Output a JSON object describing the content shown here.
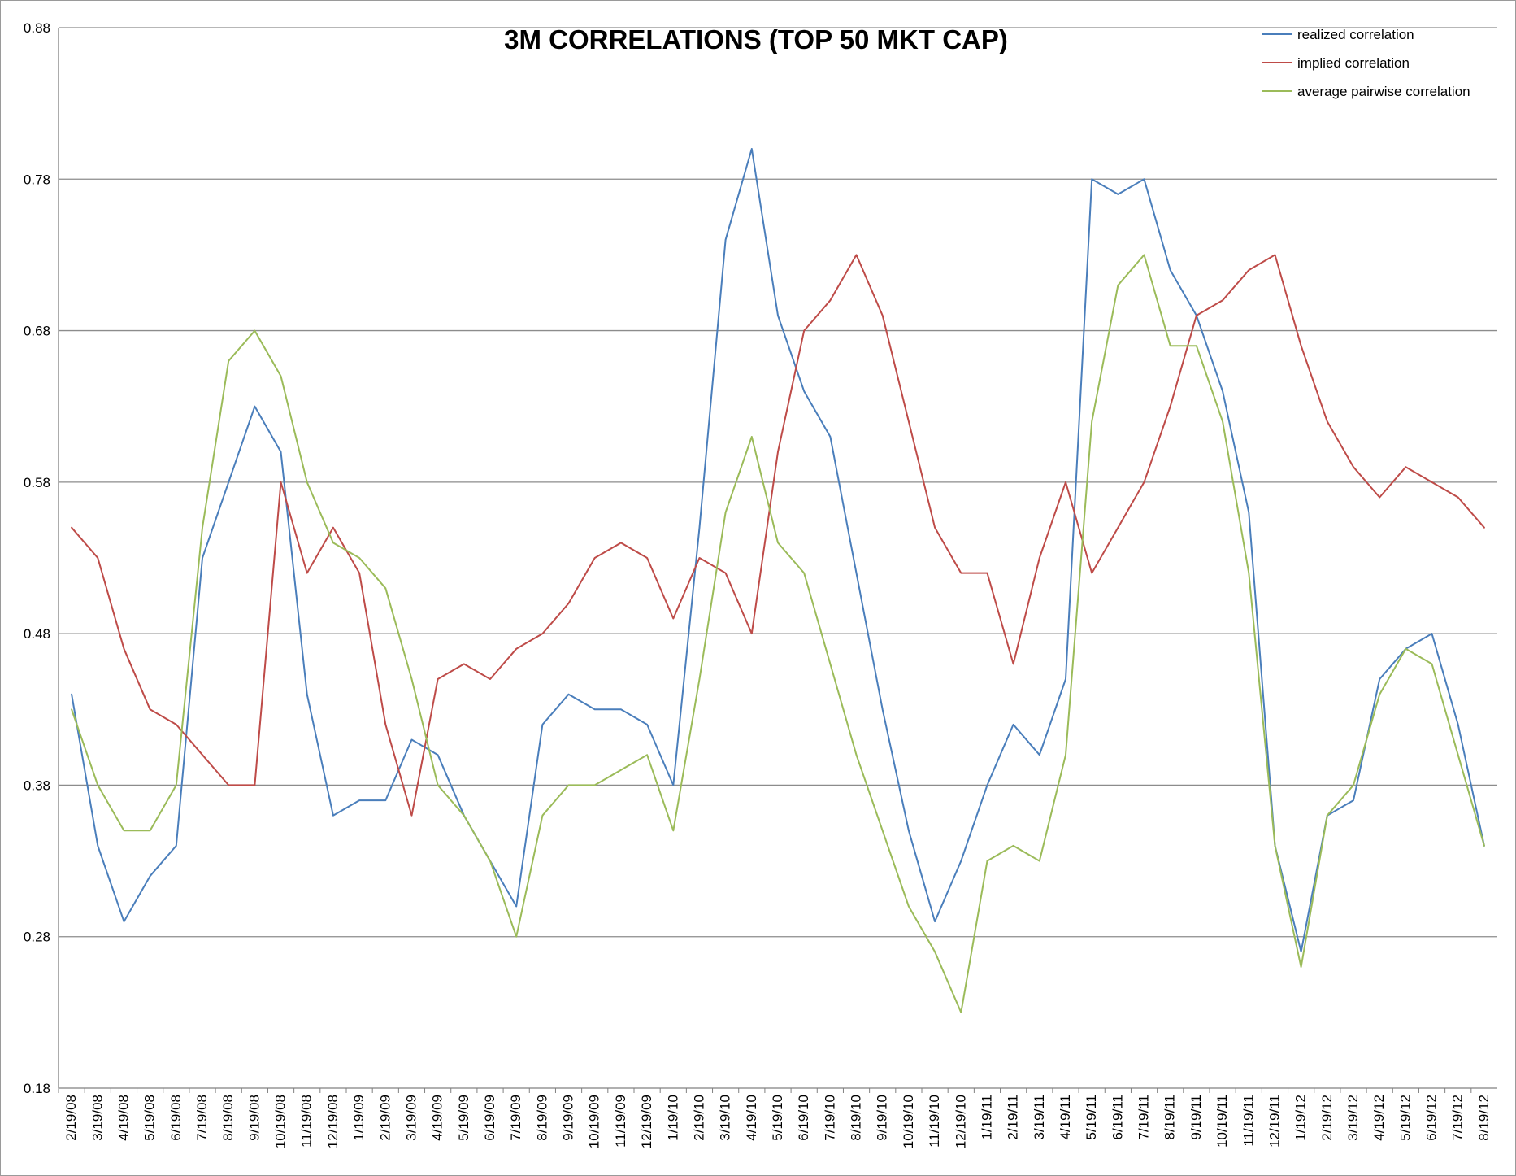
{
  "chart_data": {
    "type": "line",
    "title": "3M CORRELATIONS (TOP 50 MKT CAP)",
    "xlabel": "",
    "ylabel": "",
    "ylim": [
      0.18,
      0.88
    ],
    "yticks": [
      "0.18",
      "0.28",
      "0.38",
      "0.48",
      "0.58",
      "0.68",
      "0.78",
      "0.88"
    ],
    "xtick_labels": [
      "2/19/08",
      "3/19/08",
      "4/19/08",
      "5/19/08",
      "6/19/08",
      "7/19/08",
      "8/19/08",
      "9/19/08",
      "10/19/08",
      "11/19/08",
      "12/19/08",
      "1/19/09",
      "2/19/09",
      "3/19/09",
      "4/19/09",
      "5/19/09",
      "6/19/09",
      "7/19/09",
      "8/19/09",
      "9/19/09",
      "10/19/09",
      "11/19/09",
      "12/19/09",
      "1/19/10",
      "2/19/10",
      "3/19/10",
      "4/19/10",
      "5/19/10",
      "6/19/10",
      "7/19/10",
      "8/19/10",
      "9/19/10",
      "10/19/10",
      "11/19/10",
      "12/19/10",
      "1/19/11",
      "2/19/11",
      "3/19/11",
      "4/19/11",
      "5/19/11",
      "6/19/11",
      "7/19/11",
      "8/19/11",
      "9/19/11",
      "10/19/11",
      "11/19/11",
      "12/19/11",
      "1/19/12",
      "2/19/12",
      "3/19/12",
      "4/19/12",
      "5/19/12",
      "6/19/12",
      "7/19/12",
      "8/19/12"
    ],
    "x": [
      "2/19/08",
      "3/19/08",
      "4/19/08",
      "5/19/08",
      "6/19/08",
      "7/19/08",
      "8/19/08",
      "9/19/08",
      "10/19/08",
      "11/19/08",
      "12/19/08",
      "1/19/09",
      "2/19/09",
      "3/19/09",
      "4/19/09",
      "5/19/09",
      "6/19/09",
      "7/19/09",
      "8/19/09",
      "9/19/09",
      "10/19/09",
      "11/19/09",
      "12/19/09",
      "1/19/10",
      "2/19/10",
      "3/19/10",
      "4/19/10",
      "5/19/10",
      "6/19/10",
      "7/19/10",
      "8/19/10",
      "9/19/10",
      "10/19/10",
      "11/19/10",
      "12/19/10",
      "1/19/11",
      "2/19/11",
      "3/19/11",
      "4/19/11",
      "5/19/11",
      "6/19/11",
      "7/19/11",
      "8/19/11",
      "9/19/11",
      "10/19/11",
      "11/19/11",
      "12/19/11",
      "1/19/12",
      "2/19/12",
      "3/19/12",
      "4/19/12",
      "5/19/12",
      "6/19/12",
      "7/19/12",
      "8/19/12"
    ],
    "grid": true,
    "legend_position": "top-right",
    "series": [
      {
        "name": "realized correlation",
        "color": "#4a7ebb",
        "values": [
          0.44,
          0.34,
          0.29,
          0.32,
          0.34,
          0.53,
          0.58,
          0.63,
          0.6,
          0.44,
          0.36,
          0.37,
          0.37,
          0.41,
          0.4,
          0.36,
          0.33,
          0.3,
          0.42,
          0.44,
          0.43,
          0.43,
          0.42,
          0.38,
          0.55,
          0.74,
          0.8,
          0.69,
          0.64,
          0.61,
          0.52,
          0.43,
          0.35,
          0.29,
          0.33,
          0.38,
          0.42,
          0.4,
          0.45,
          0.78,
          0.77,
          0.78,
          0.72,
          0.69,
          0.64,
          0.56,
          0.34,
          0.27,
          0.36,
          0.37,
          0.45,
          0.47,
          0.48,
          0.42,
          0.34
        ]
      },
      {
        "name": "implied correlation",
        "color": "#be4b48",
        "values": [
          0.55,
          0.53,
          0.47,
          0.43,
          0.42,
          0.4,
          0.38,
          0.38,
          0.58,
          0.52,
          0.55,
          0.52,
          0.42,
          0.36,
          0.45,
          0.46,
          0.45,
          0.47,
          0.48,
          0.5,
          0.53,
          0.54,
          0.53,
          0.49,
          0.53,
          0.52,
          0.48,
          0.6,
          0.68,
          0.7,
          0.73,
          0.69,
          0.62,
          0.55,
          0.52,
          0.52,
          0.46,
          0.53,
          0.58,
          0.52,
          0.55,
          0.58,
          0.63,
          0.69,
          0.7,
          0.72,
          0.73,
          0.67,
          0.62,
          0.59,
          0.57,
          0.59,
          0.58,
          0.57,
          0.55
        ]
      },
      {
        "name": "average pairwise correlation",
        "color": "#9bbb59",
        "values": [
          0.43,
          0.38,
          0.35,
          0.35,
          0.38,
          0.55,
          0.66,
          0.68,
          0.65,
          0.58,
          0.54,
          0.53,
          0.51,
          0.45,
          0.38,
          0.36,
          0.33,
          0.28,
          0.36,
          0.38,
          0.38,
          0.39,
          0.4,
          0.35,
          0.45,
          0.56,
          0.61,
          0.54,
          0.52,
          0.46,
          0.4,
          0.35,
          0.3,
          0.27,
          0.23,
          0.33,
          0.34,
          0.33,
          0.4,
          0.62,
          0.71,
          0.73,
          0.67,
          0.67,
          0.62,
          0.52,
          0.34,
          0.26,
          0.36,
          0.38,
          0.44,
          0.47,
          0.46,
          0.4,
          0.34
        ]
      }
    ]
  }
}
